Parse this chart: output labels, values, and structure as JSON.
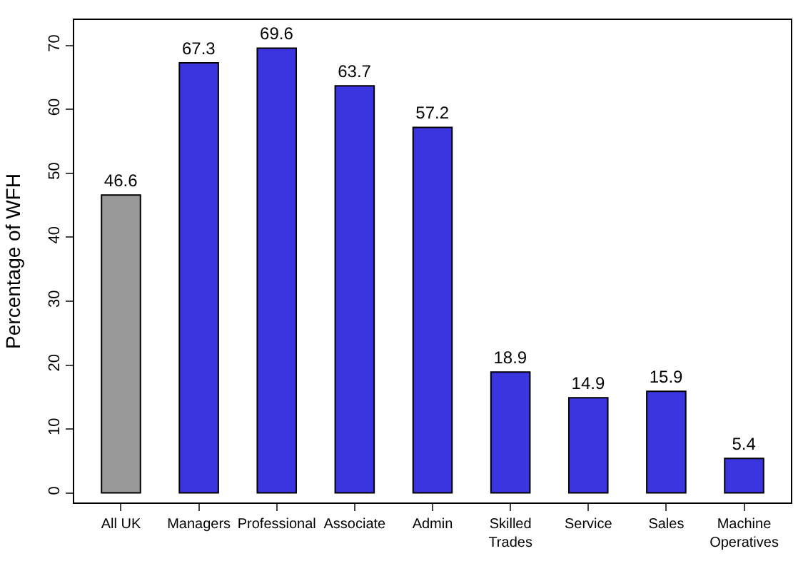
{
  "chart_data": {
    "type": "bar",
    "ylabel": "Percentage of WFH",
    "categories": [
      "All UK",
      "Managers",
      "Professional",
      "Associate",
      "Admin",
      "Skilled\nTrades",
      "Service",
      "Sales",
      "Machine\nOperatives"
    ],
    "values": [
      46.6,
      67.3,
      69.6,
      63.7,
      57.2,
      18.9,
      14.9,
      15.9,
      5.4
    ],
    "colors": [
      "#999999",
      "#3b35e0",
      "#3b35e0",
      "#3b35e0",
      "#3b35e0",
      "#3b35e0",
      "#3b35e0",
      "#3b35e0",
      "#3b35e0"
    ],
    "ylim": [
      -1.5,
      74
    ],
    "yticks": [
      0,
      10,
      20,
      30,
      40,
      50,
      60,
      70
    ],
    "grid": false,
    "data_labels": true
  }
}
